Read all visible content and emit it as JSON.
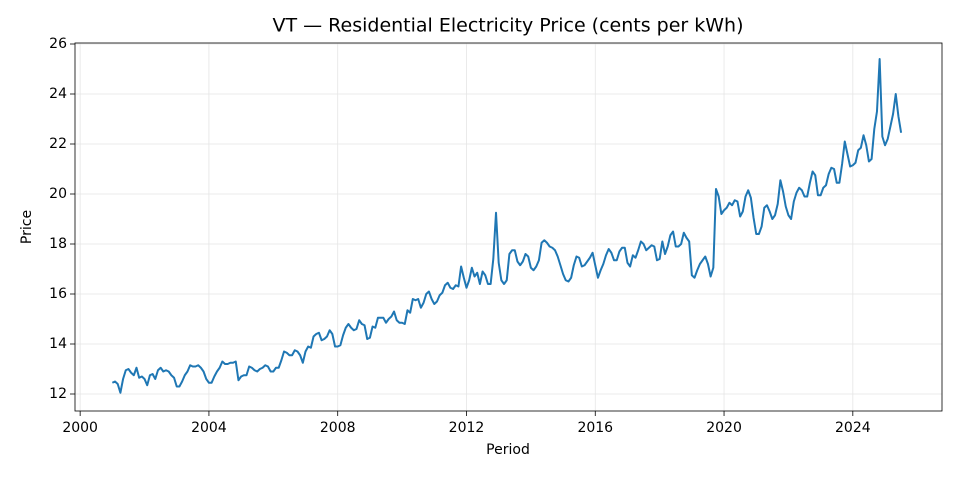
{
  "chart_data": {
    "type": "line",
    "title": "VT — Residential Electricity Price (cents per kWh)",
    "x_label": "Period",
    "y_label": "Price",
    "x": [
      2001.0,
      2001.083,
      2001.167,
      2001.25,
      2001.333,
      2001.417,
      2001.5,
      2001.583,
      2001.667,
      2001.75,
      2001.833,
      2001.917,
      2002.0,
      2002.083,
      2002.167,
      2002.25,
      2002.333,
      2002.417,
      2002.5,
      2002.583,
      2002.667,
      2002.75,
      2002.833,
      2002.917,
      2003.0,
      2003.083,
      2003.167,
      2003.25,
      2003.333,
      2003.417,
      2003.5,
      2003.583,
      2003.667,
      2003.75,
      2003.833,
      2003.917,
      2004.0,
      2004.083,
      2004.167,
      2004.25,
      2004.333,
      2004.417,
      2004.5,
      2004.583,
      2004.667,
      2004.75,
      2004.833,
      2004.917,
      2005.0,
      2005.083,
      2005.167,
      2005.25,
      2005.333,
      2005.417,
      2005.5,
      2005.583,
      2005.667,
      2005.75,
      2005.833,
      2005.917,
      2006.0,
      2006.083,
      2006.167,
      2006.25,
      2006.333,
      2006.417,
      2006.5,
      2006.583,
      2006.667,
      2006.75,
      2006.833,
      2006.917,
      2007.0,
      2007.083,
      2007.167,
      2007.25,
      2007.333,
      2007.417,
      2007.5,
      2007.583,
      2007.667,
      2007.75,
      2007.833,
      2007.917,
      2008.0,
      2008.083,
      2008.167,
      2008.25,
      2008.333,
      2008.417,
      2008.5,
      2008.583,
      2008.667,
      2008.75,
      2008.833,
      2008.917,
      2009.0,
      2009.083,
      2009.167,
      2009.25,
      2009.333,
      2009.417,
      2009.5,
      2009.583,
      2009.667,
      2009.75,
      2009.833,
      2009.917,
      2010.0,
      2010.083,
      2010.167,
      2010.25,
      2010.333,
      2010.417,
      2010.5,
      2010.583,
      2010.667,
      2010.75,
      2010.833,
      2010.917,
      2011.0,
      2011.083,
      2011.167,
      2011.25,
      2011.333,
      2011.417,
      2011.5,
      2011.583,
      2011.667,
      2011.75,
      2011.833,
      2011.917,
      2012.0,
      2012.083,
      2012.167,
      2012.25,
      2012.333,
      2012.417,
      2012.5,
      2012.583,
      2012.667,
      2012.75,
      2012.833,
      2012.917,
      2013.0,
      2013.083,
      2013.167,
      2013.25,
      2013.333,
      2013.417,
      2013.5,
      2013.583,
      2013.667,
      2013.75,
      2013.833,
      2013.917,
      2014.0,
      2014.083,
      2014.167,
      2014.25,
      2014.333,
      2014.417,
      2014.5,
      2014.583,
      2014.667,
      2014.75,
      2014.833,
      2014.917,
      2015.0,
      2015.083,
      2015.167,
      2015.25,
      2015.333,
      2015.417,
      2015.5,
      2015.583,
      2015.667,
      2015.75,
      2015.833,
      2015.917,
      2016.0,
      2016.083,
      2016.167,
      2016.25,
      2016.333,
      2016.417,
      2016.5,
      2016.583,
      2016.667,
      2016.75,
      2016.833,
      2016.917,
      2017.0,
      2017.083,
      2017.167,
      2017.25,
      2017.333,
      2017.417,
      2017.5,
      2017.583,
      2017.667,
      2017.75,
      2017.833,
      2017.917,
      2018.0,
      2018.083,
      2018.167,
      2018.25,
      2018.333,
      2018.417,
      2018.5,
      2018.583,
      2018.667,
      2018.75,
      2018.833,
      2018.917,
      2019.0,
      2019.083,
      2019.167,
      2019.25,
      2019.333,
      2019.417,
      2019.5,
      2019.583,
      2019.667,
      2019.75,
      2019.833,
      2019.917,
      2020.0,
      2020.083,
      2020.167,
      2020.25,
      2020.333,
      2020.417,
      2020.5,
      2020.583,
      2020.667,
      2020.75,
      2020.833,
      2020.917,
      2021.0,
      2021.083,
      2021.167,
      2021.25,
      2021.333,
      2021.417,
      2021.5,
      2021.583,
      2021.667,
      2021.75,
      2021.833,
      2021.917,
      2022.0,
      2022.083,
      2022.167,
      2022.25,
      2022.333,
      2022.417,
      2022.5,
      2022.583,
      2022.667,
      2022.75,
      2022.833,
      2022.917,
      2023.0,
      2023.083,
      2023.167,
      2023.25,
      2023.333,
      2023.417,
      2023.5,
      2023.583,
      2023.667,
      2023.75,
      2023.833,
      2023.917,
      2024.0,
      2024.083,
      2024.167,
      2024.25,
      2024.333,
      2024.417,
      2024.5,
      2024.583,
      2024.667,
      2024.75,
      2024.833,
      2024.917,
      2025.0,
      2025.083,
      2025.167,
      2025.25,
      2025.333,
      2025.417,
      2025.5
    ],
    "series": [
      {
        "name": "Price",
        "color": "#1f77b4",
        "values": [
          12.45,
          12.5,
          12.4,
          12.05,
          12.6,
          12.95,
          13.0,
          12.85,
          12.75,
          13.05,
          12.65,
          12.7,
          12.6,
          12.35,
          12.75,
          12.8,
          12.6,
          12.95,
          13.05,
          12.9,
          12.95,
          12.9,
          12.75,
          12.65,
          12.3,
          12.3,
          12.5,
          12.75,
          12.9,
          13.15,
          13.1,
          13.1,
          13.15,
          13.05,
          12.9,
          12.6,
          12.45,
          12.45,
          12.7,
          12.9,
          13.05,
          13.3,
          13.2,
          13.2,
          13.25,
          13.25,
          13.3,
          12.55,
          12.7,
          12.75,
          12.75,
          13.1,
          13.05,
          12.95,
          12.9,
          13.0,
          13.05,
          13.15,
          13.1,
          12.9,
          12.9,
          13.05,
          13.05,
          13.35,
          13.7,
          13.65,
          13.55,
          13.55,
          13.75,
          13.7,
          13.55,
          13.25,
          13.7,
          13.9,
          13.85,
          14.3,
          14.4,
          14.45,
          14.15,
          14.2,
          14.3,
          14.55,
          14.4,
          13.9,
          13.9,
          13.95,
          14.35,
          14.65,
          14.8,
          14.65,
          14.55,
          14.6,
          14.95,
          14.8,
          14.75,
          14.2,
          14.25,
          14.7,
          14.65,
          15.05,
          15.05,
          15.05,
          14.85,
          15.0,
          15.1,
          15.3,
          14.95,
          14.85,
          14.85,
          14.8,
          15.35,
          15.25,
          15.8,
          15.75,
          15.8,
          15.45,
          15.65,
          16.0,
          16.1,
          15.8,
          15.6,
          15.7,
          15.95,
          16.05,
          16.35,
          16.45,
          16.25,
          16.2,
          16.35,
          16.3,
          17.1,
          16.65,
          16.25,
          16.55,
          17.05,
          16.7,
          16.85,
          16.4,
          16.9,
          16.75,
          16.4,
          16.4,
          17.4,
          19.25,
          17.25,
          16.55,
          16.4,
          16.55,
          17.6,
          17.75,
          17.75,
          17.3,
          17.15,
          17.3,
          17.6,
          17.5,
          17.05,
          16.95,
          17.1,
          17.35,
          18.05,
          18.15,
          18.05,
          17.9,
          17.85,
          17.75,
          17.5,
          17.15,
          16.8,
          16.55,
          16.5,
          16.65,
          17.15,
          17.5,
          17.45,
          17.1,
          17.15,
          17.3,
          17.45,
          17.65,
          17.15,
          16.65,
          16.95,
          17.2,
          17.55,
          17.8,
          17.65,
          17.35,
          17.35,
          17.7,
          17.85,
          17.85,
          17.25,
          17.1,
          17.55,
          17.45,
          17.75,
          18.1,
          18.0,
          17.75,
          17.85,
          17.95,
          17.9,
          17.35,
          17.4,
          18.1,
          17.6,
          17.9,
          18.35,
          18.5,
          17.9,
          17.9,
          18.0,
          18.45,
          18.25,
          18.1,
          16.75,
          16.65,
          16.95,
          17.2,
          17.35,
          17.5,
          17.2,
          16.7,
          17.05,
          20.2,
          19.9,
          19.2,
          19.35,
          19.45,
          19.65,
          19.55,
          19.75,
          19.7,
          19.1,
          19.3,
          19.9,
          20.15,
          19.85,
          19.05,
          18.4,
          18.4,
          18.7,
          19.45,
          19.55,
          19.3,
          19.0,
          19.15,
          19.6,
          20.55,
          20.1,
          19.5,
          19.15,
          19.0,
          19.7,
          20.05,
          20.25,
          20.15,
          19.9,
          19.9,
          20.45,
          20.9,
          20.75,
          19.95,
          19.95,
          20.25,
          20.35,
          20.8,
          21.05,
          21.0,
          20.45,
          20.45,
          21.2,
          22.1,
          21.6,
          21.1,
          21.15,
          21.25,
          21.75,
          21.85,
          22.35,
          21.95,
          21.3,
          21.4,
          22.6,
          23.3,
          25.4,
          22.3,
          21.95,
          22.2,
          22.7,
          23.2,
          24.0,
          23.1,
          22.45
        ]
      }
    ],
    "xlim": [
      1999.84,
      2026.77
    ],
    "xticks": [
      2000,
      2004,
      2008,
      2012,
      2016,
      2020,
      2024
    ],
    "ylim": [
      11.32,
      26.04
    ],
    "yticks": [
      12,
      14,
      16,
      18,
      20,
      22,
      24,
      26
    ],
    "grid": true
  }
}
